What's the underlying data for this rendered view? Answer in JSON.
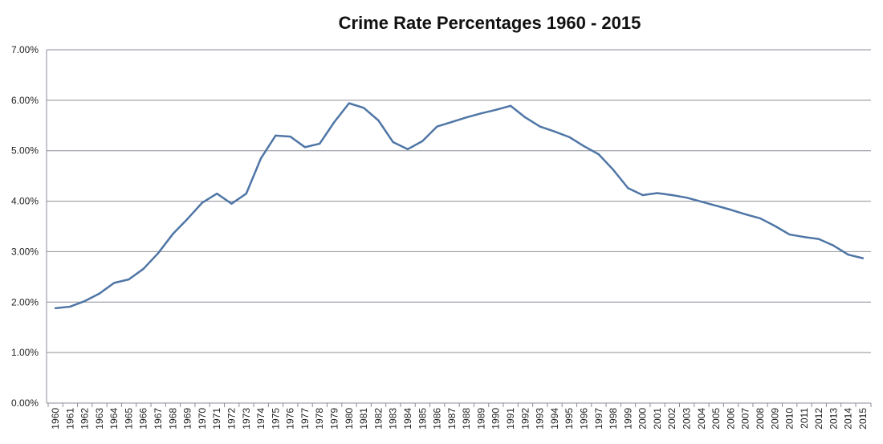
{
  "chart_data": {
    "type": "line",
    "title": "Crime Rate Percentages 1960 - 2015",
    "xlabel": "",
    "ylabel": "",
    "ylim": [
      0,
      7
    ],
    "yticks": [
      "0.00%",
      "1.00%",
      "2.00%",
      "3.00%",
      "4.00%",
      "5.00%",
      "6.00%",
      "7.00%"
    ],
    "grid": true,
    "legend": "none",
    "line_color": "#4f76a6",
    "x": [
      1960,
      1961,
      1962,
      1963,
      1964,
      1965,
      1966,
      1967,
      1968,
      1969,
      1970,
      1971,
      1972,
      1973,
      1974,
      1975,
      1976,
      1977,
      1978,
      1979,
      1980,
      1981,
      1982,
      1983,
      1984,
      1985,
      1986,
      1987,
      1988,
      1989,
      1990,
      1991,
      1992,
      1993,
      1994,
      1995,
      1996,
      1997,
      1998,
      1999,
      2000,
      2001,
      2002,
      2003,
      2004,
      2005,
      2006,
      2007,
      2008,
      2009,
      2010,
      2011,
      2012,
      2013,
      2014,
      2015
    ],
    "series": [
      {
        "name": "Crime Rate",
        "values": [
          1.88,
          1.91,
          2.02,
          2.17,
          2.38,
          2.45,
          2.66,
          2.97,
          3.35,
          3.65,
          3.97,
          4.15,
          3.95,
          4.15,
          4.85,
          5.3,
          5.28,
          5.07,
          5.14,
          5.57,
          5.94,
          5.85,
          5.6,
          5.17,
          5.03,
          5.19,
          5.48,
          5.57,
          5.66,
          5.74,
          5.81,
          5.89,
          5.66,
          5.48,
          5.38,
          5.27,
          5.09,
          4.93,
          4.62,
          4.26,
          4.12,
          4.16,
          4.12,
          4.07,
          3.99,
          3.91,
          3.83,
          3.74,
          3.66,
          3.51,
          3.34,
          3.29,
          3.25,
          3.12,
          2.94,
          2.87
        ]
      }
    ]
  }
}
